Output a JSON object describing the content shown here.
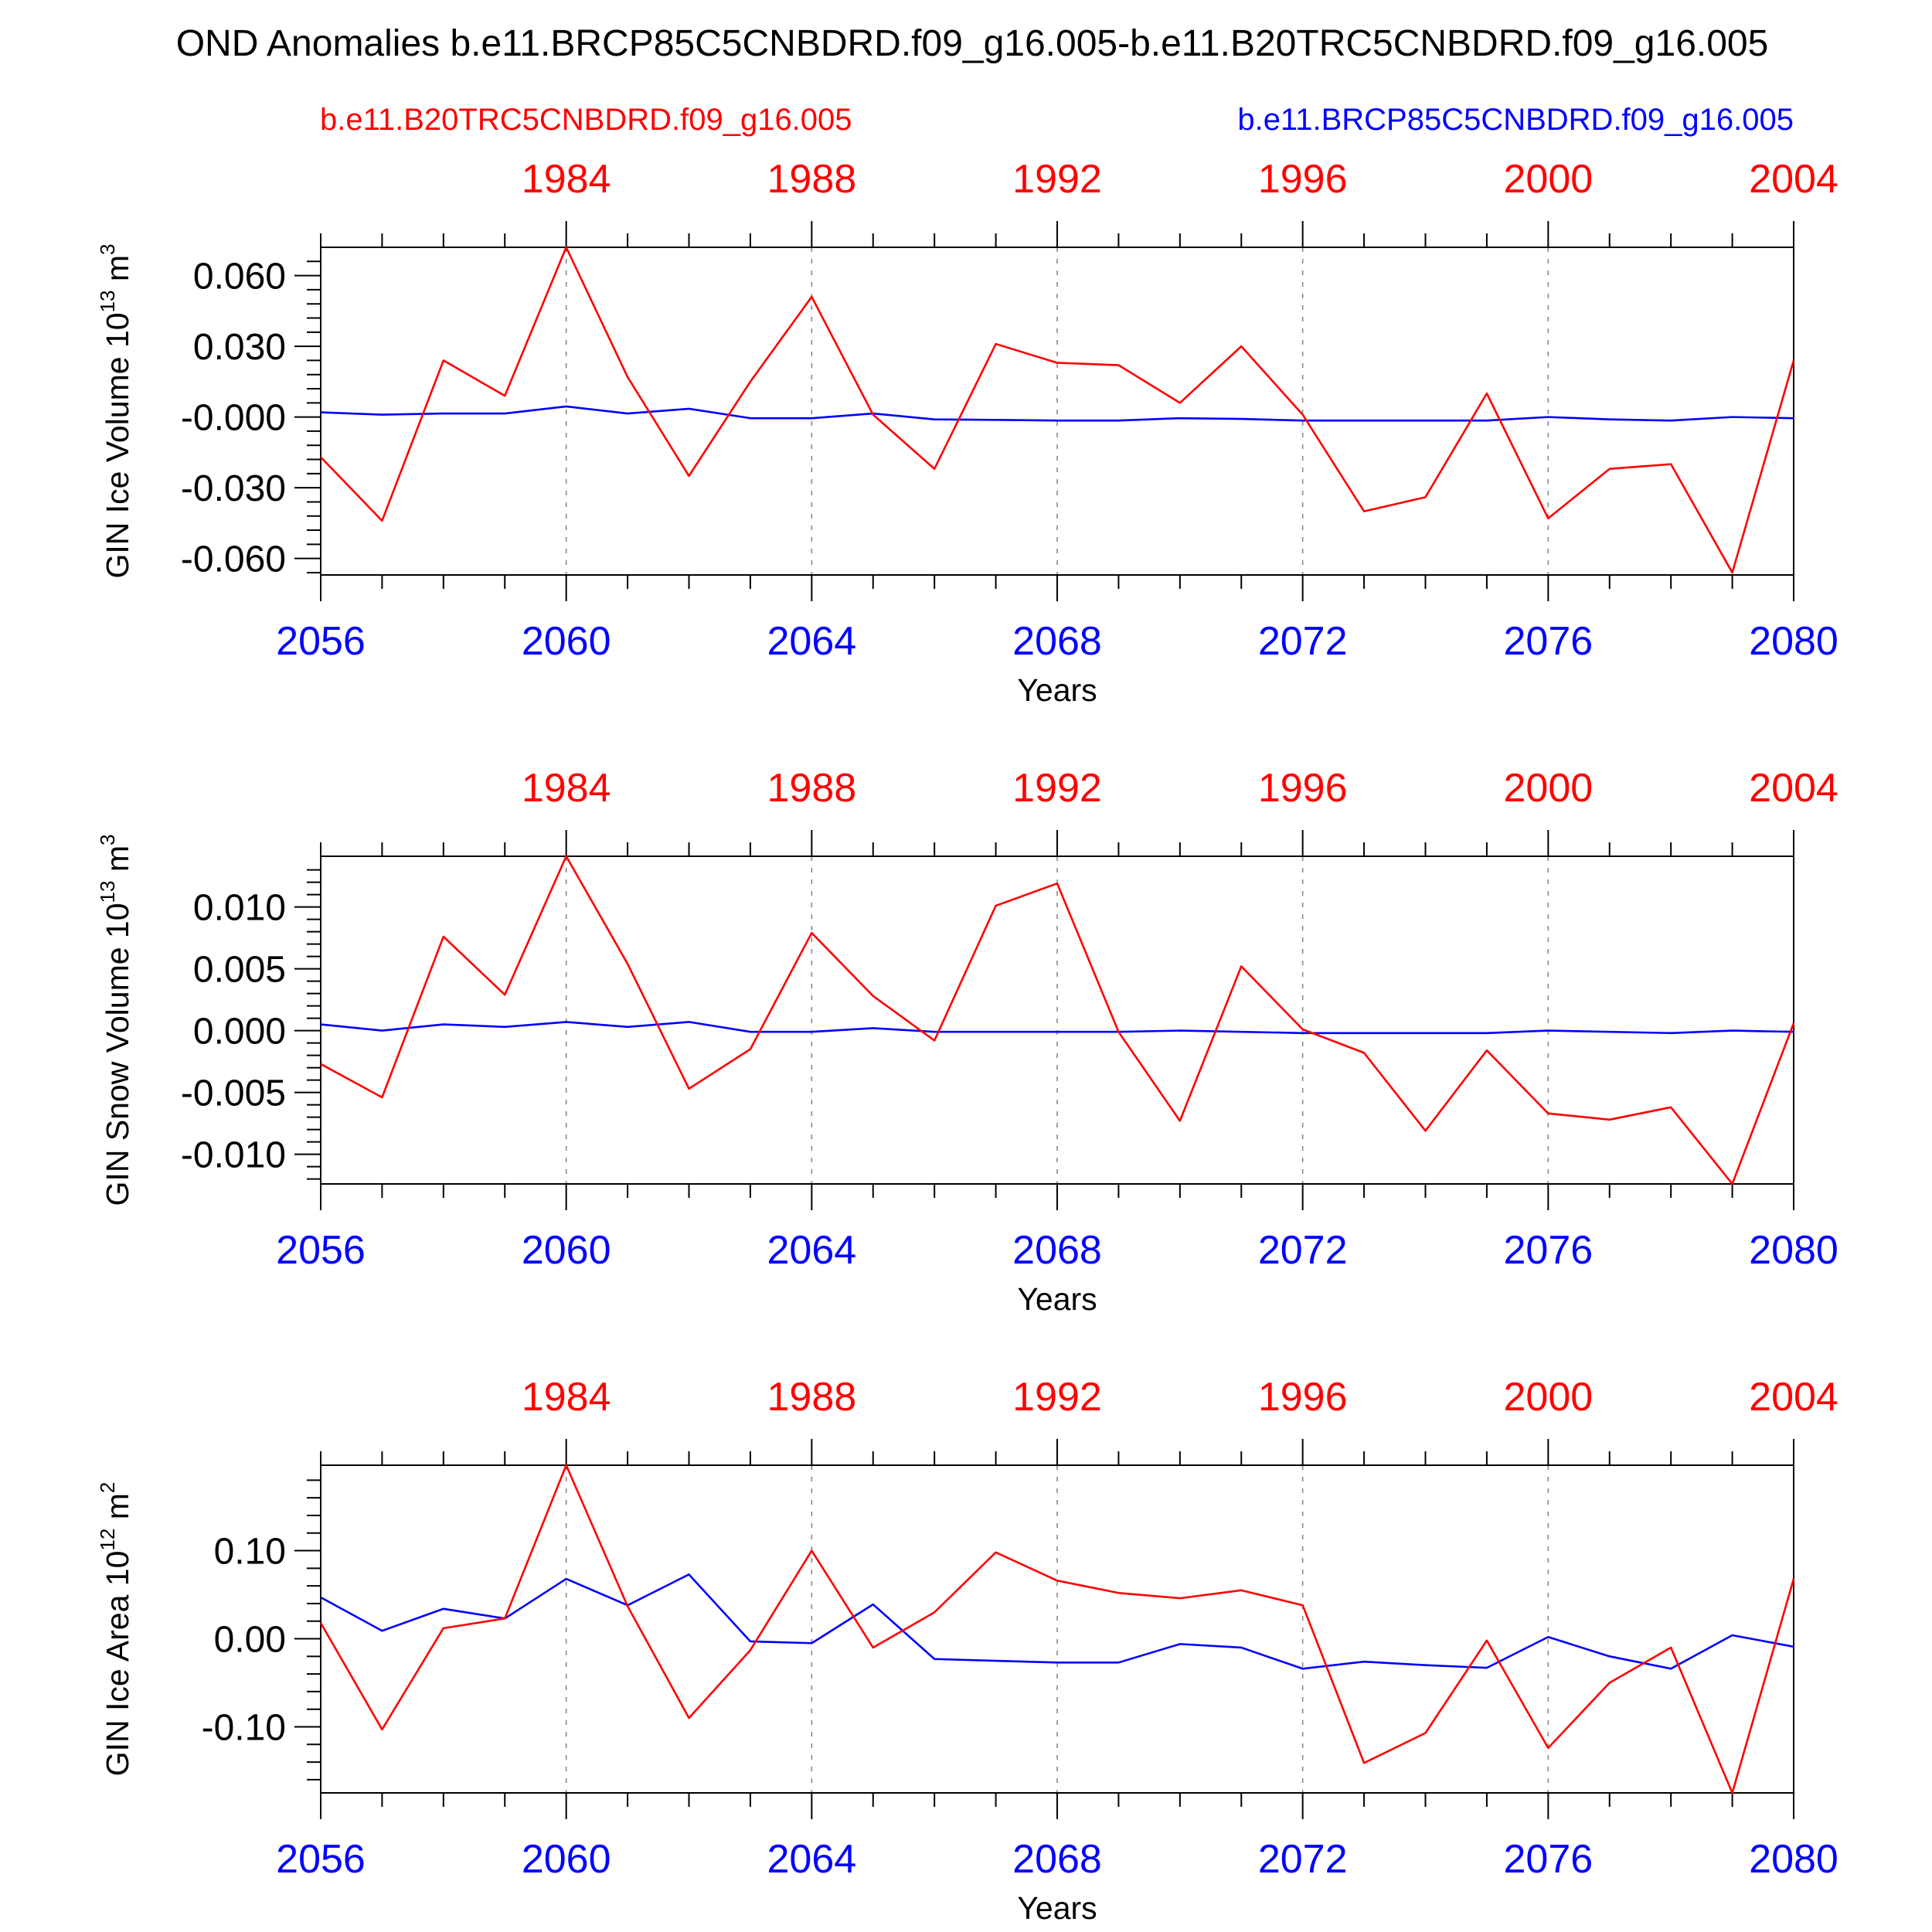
{
  "title": "OND Anomalies b.e11.BRCP85C5CNBDRD.f09_g16.005-b.e11.B20TRC5CNBDRD.f09_g16.005",
  "legend": {
    "red_label": "b.e11.B20TRC5CNBDRD.f09_g16.005",
    "blue_label": "b.e11.BRCP85C5CNBDRD.f09_g16.005"
  },
  "colors": {
    "red": "#ff0000",
    "blue": "#0000ff",
    "text": "#000000"
  },
  "chart_data": [
    {
      "type": "line",
      "title": "",
      "xlabel": "Years",
      "ylabel": "GIN Ice Volume 10",
      "ylabel_exp": "13",
      "ylabel_unit": " m",
      "ylabel_unit_exp": "3",
      "ylim": [
        -0.067,
        0.072
      ],
      "yticks": [
        0.06,
        0.03,
        0.0,
        -0.03,
        -0.06
      ],
      "ytick_labels": [
        "0.060",
        "0.030",
        "-0.000",
        "-0.030",
        "-0.060"
      ],
      "yminor": [
        0.066,
        0.054,
        0.048,
        0.042,
        0.036,
        0.024,
        0.018,
        0.012,
        0.006,
        -0.006,
        -0.012,
        -0.018,
        -0.024,
        -0.036,
        -0.042,
        -0.048,
        -0.054,
        -0.066
      ],
      "xlim": [
        2056,
        2080
      ],
      "bottom_ticks": [
        2056,
        2060,
        2064,
        2068,
        2072,
        2076,
        2080
      ],
      "bottom_tick_labels": [
        "2056",
        "2060",
        "2064",
        "2068",
        "2072",
        "2076",
        "2080"
      ],
      "top_ticks": [
        1984,
        1988,
        1992,
        1996,
        2000,
        2004
      ],
      "top_tick_labels": [
        "1984",
        "1988",
        "1992",
        "1996",
        "2000",
        "2004"
      ],
      "x": [
        2056,
        2057,
        2058,
        2059,
        2060,
        2061,
        2062,
        2063,
        2064,
        2065,
        2066,
        2067,
        2068,
        2069,
        2070,
        2071,
        2072,
        2073,
        2074,
        2075,
        2076,
        2077,
        2078,
        2079,
        2080
      ],
      "series": [
        {
          "color": "red",
          "values": [
            -0.017,
            -0.044,
            0.024,
            0.009,
            0.072,
            0.017,
            -0.025,
            0.015,
            0.051,
            0.001,
            -0.022,
            0.031,
            0.023,
            0.022,
            0.006,
            0.03,
            0.001,
            -0.04,
            -0.034,
            0.01,
            -0.043,
            -0.022,
            -0.02,
            -0.066,
            0.024
          ]
        },
        {
          "color": "blue",
          "values": [
            0.002,
            0.001,
            0.0015,
            0.0015,
            0.0045,
            0.0015,
            0.0035,
            -0.0005,
            -0.0005,
            0.0015,
            -0.001,
            -0.0012,
            -0.0015,
            -0.0015,
            -0.0005,
            -0.0008,
            -0.0015,
            -0.0015,
            -0.0015,
            -0.0015,
            0.0,
            -0.001,
            -0.0015,
            0.0,
            -0.0005
          ]
        }
      ]
    },
    {
      "type": "line",
      "title": "",
      "xlabel": "Years",
      "ylabel": "GIN Snow Volume 10",
      "ylabel_exp": "13",
      "ylabel_unit": " m",
      "ylabel_unit_exp": "3",
      "ylim": [
        -0.0124,
        0.0141
      ],
      "yticks": [
        0.01,
        0.005,
        0.0,
        -0.005,
        -0.01
      ],
      "ytick_labels": [
        "0.010",
        "0.005",
        "0.000",
        "-0.005",
        "-0.010"
      ],
      "yminor": [
        0.013,
        0.012,
        0.011,
        0.009,
        0.008,
        0.007,
        0.006,
        0.004,
        0.003,
        0.002,
        0.001,
        -0.001,
        -0.002,
        -0.003,
        -0.004,
        -0.006,
        -0.007,
        -0.008,
        -0.009,
        -0.011,
        -0.012
      ],
      "xlim": [
        2056,
        2080
      ],
      "bottom_ticks": [
        2056,
        2060,
        2064,
        2068,
        2072,
        2076,
        2080
      ],
      "bottom_tick_labels": [
        "2056",
        "2060",
        "2064",
        "2068",
        "2072",
        "2076",
        "2080"
      ],
      "top_ticks": [
        1984,
        1988,
        1992,
        1996,
        2000,
        2004
      ],
      "top_tick_labels": [
        "1984",
        "1988",
        "1992",
        "1996",
        "2000",
        "2004"
      ],
      "x": [
        2056,
        2057,
        2058,
        2059,
        2060,
        2061,
        2062,
        2063,
        2064,
        2065,
        2066,
        2067,
        2068,
        2069,
        2070,
        2071,
        2072,
        2073,
        2074,
        2075,
        2076,
        2077,
        2078,
        2079,
        2080
      ],
      "series": [
        {
          "color": "red",
          "values": [
            -0.0027,
            -0.0054,
            0.0076,
            0.0029,
            0.0141,
            0.0054,
            -0.0047,
            -0.0015,
            0.0079,
            0.0028,
            -0.0008,
            0.0101,
            0.0119,
            -0.0001,
            -0.0073,
            0.0052,
            0.0001,
            -0.0018,
            -0.0081,
            -0.0016,
            -0.0067,
            -0.0072,
            -0.0062,
            -0.0124,
            0.0006
          ]
        },
        {
          "color": "blue",
          "values": [
            0.0005,
            0.0,
            0.0005,
            0.0003,
            0.0007,
            0.0003,
            0.0007,
            -0.0001,
            -0.0001,
            0.0002,
            -0.0001,
            -0.0001,
            -0.0001,
            -0.0001,
            0.0,
            -0.0001,
            -0.0002,
            -0.0002,
            -0.0002,
            -0.0002,
            0.0,
            -0.0001,
            -0.0002,
            0.0,
            -0.0001
          ]
        }
      ]
    },
    {
      "type": "line",
      "title": "",
      "xlabel": "Years",
      "ylabel": "GIN Ice Area 10",
      "ylabel_exp": "12",
      "ylabel_unit": " m",
      "ylabel_unit_exp": "2",
      "ylim": [
        -0.175,
        0.197
      ],
      "yticks": [
        0.1,
        0.0,
        -0.1
      ],
      "ytick_labels": [
        "0.10",
        "0.00",
        "-0.10"
      ],
      "yminor": [
        0.18,
        0.16,
        0.14,
        0.12,
        0.08,
        0.06,
        0.04,
        0.02,
        -0.02,
        -0.04,
        -0.06,
        -0.08,
        -0.12,
        -0.14,
        -0.16
      ],
      "xlim": [
        2056,
        2080
      ],
      "bottom_ticks": [
        2056,
        2060,
        2064,
        2068,
        2072,
        2076,
        2080
      ],
      "bottom_tick_labels": [
        "2056",
        "2060",
        "2064",
        "2068",
        "2072",
        "2076",
        "2080"
      ],
      "top_ticks": [
        1984,
        1988,
        1992,
        1996,
        2000,
        2004
      ],
      "top_tick_labels": [
        "1984",
        "1988",
        "1992",
        "1996",
        "2000",
        "2004"
      ],
      "x": [
        2056,
        2057,
        2058,
        2059,
        2060,
        2061,
        2062,
        2063,
        2064,
        2065,
        2066,
        2067,
        2068,
        2069,
        2070,
        2071,
        2072,
        2073,
        2074,
        2075,
        2076,
        2077,
        2078,
        2079,
        2080
      ],
      "series": [
        {
          "color": "red",
          "values": [
            0.018,
            -0.103,
            0.012,
            0.023,
            0.197,
            0.037,
            -0.09,
            -0.013,
            0.1,
            -0.01,
            0.03,
            0.098,
            0.066,
            0.052,
            0.046,
            0.055,
            0.038,
            -0.141,
            -0.107,
            -0.002,
            -0.124,
            -0.05,
            -0.01,
            -0.175,
            0.068
          ]
        },
        {
          "color": "blue",
          "values": [
            0.047,
            0.009,
            0.034,
            0.023,
            0.068,
            0.038,
            0.073,
            -0.003,
            -0.005,
            0.039,
            -0.023,
            -0.025,
            -0.027,
            -0.027,
            -0.006,
            -0.01,
            -0.034,
            -0.026,
            -0.03,
            -0.033,
            0.002,
            -0.02,
            -0.034,
            0.004,
            -0.009
          ]
        }
      ]
    }
  ]
}
